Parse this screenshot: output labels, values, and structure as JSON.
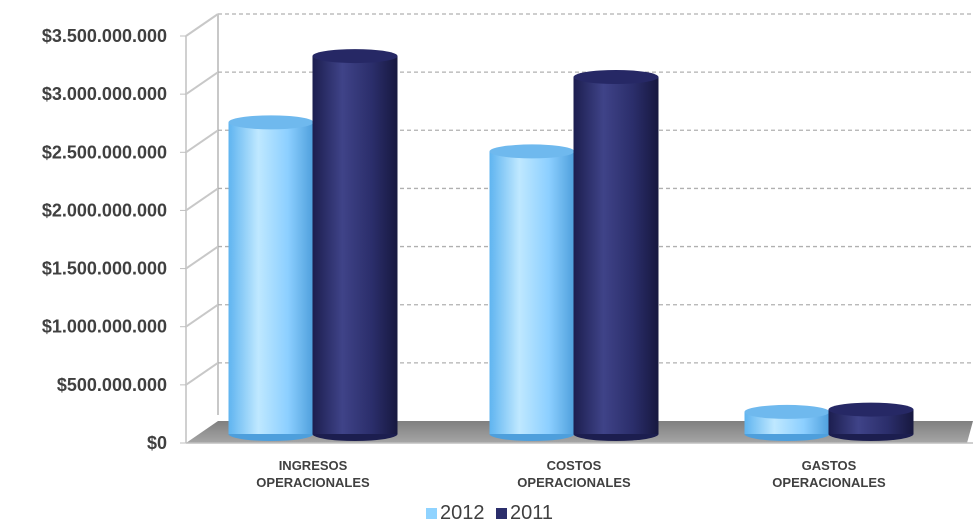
{
  "chart_data": {
    "type": "bar",
    "style": "3d-cylinder",
    "categories": [
      [
        "INGRESOS",
        "OPERACIONALES"
      ],
      [
        "COSTOS",
        "OPERACIONALES"
      ],
      [
        "GASTOS",
        "OPERACIONALES"
      ]
    ],
    "series": [
      {
        "name": "2012",
        "color": "#8fd3ff",
        "values": [
          2680000000,
          2430000000,
          190000000
        ]
      },
      {
        "name": "2011",
        "color": "#2b2e6b",
        "values": [
          3250000000,
          3070000000,
          210000000
        ]
      }
    ],
    "y_ticks": [
      "$0",
      "$500.000.000",
      "$1.000.000.000",
      "$1.500.000.000",
      "$2.000.000.000",
      "$2.500.000.000",
      "$3.000.000.000",
      "$3.500.000.000"
    ],
    "ylim": [
      0,
      3500000000
    ],
    "grid": true,
    "legend_position": "bottom",
    "floor_color": "#8c8c8c"
  }
}
